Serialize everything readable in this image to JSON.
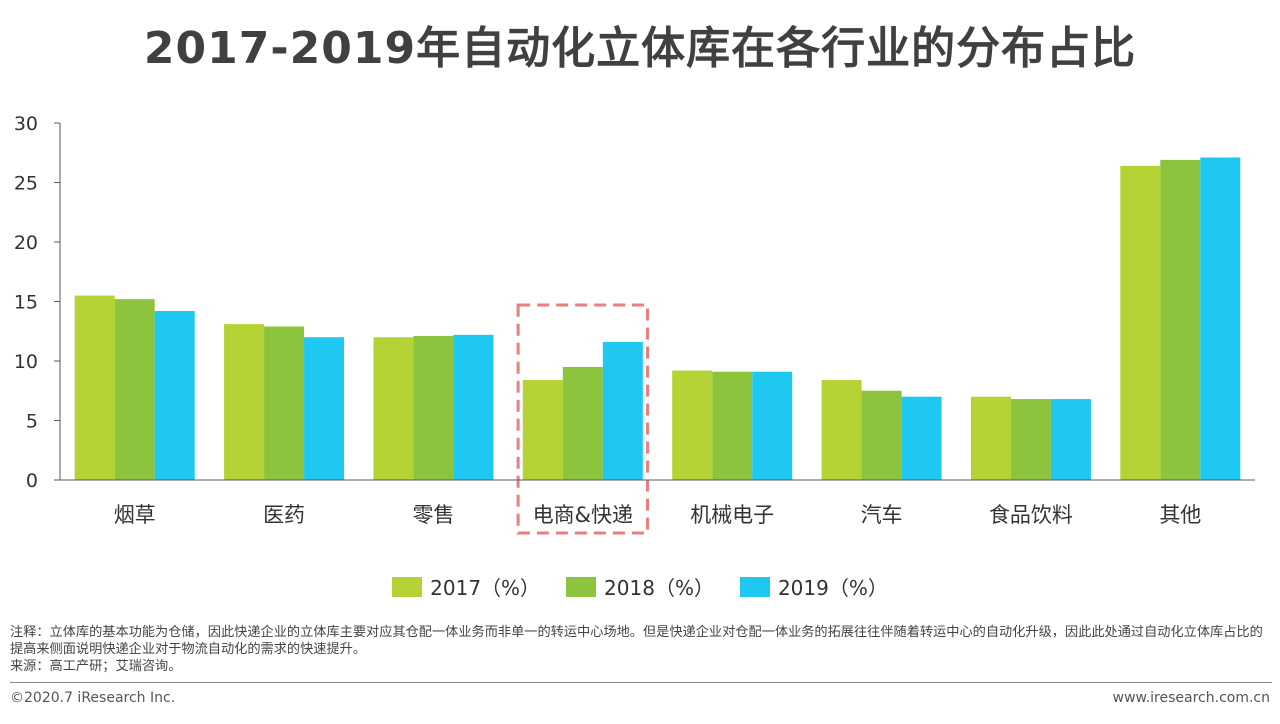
{
  "title": "2017-2019年自动化立体库在各行业的分布占比",
  "colors": {
    "s2017": "#b5d334",
    "s2018": "#8cc43e",
    "s2019": "#1ec8f0",
    "highlight": "#e97f7f",
    "axis": "#595959"
  },
  "chart_data": {
    "type": "bar",
    "categories": [
      "烟草",
      "医药",
      "零售",
      "电商&快递",
      "机械电子",
      "汽车",
      "食品饮料",
      "其他"
    ],
    "series": [
      {
        "name": "2017（%）",
        "values": [
          15.5,
          13.1,
          12.0,
          8.4,
          9.2,
          8.4,
          7.0,
          26.4
        ]
      },
      {
        "name": "2018（%）",
        "values": [
          15.2,
          12.9,
          12.1,
          9.5,
          9.1,
          7.5,
          6.8,
          26.9
        ]
      },
      {
        "name": "2019（%）",
        "values": [
          14.2,
          12.0,
          12.2,
          11.6,
          9.1,
          7.0,
          6.8,
          27.1
        ]
      }
    ],
    "yticks": [
      "0",
      "5",
      "10",
      "15",
      "20",
      "25",
      "30"
    ],
    "ylim": [
      0,
      30
    ],
    "highlight_category": "电商&快递",
    "legend": [
      "2017（%）",
      "2018（%）",
      "2019（%）"
    ]
  },
  "note": "注释：立体库的基本功能为仓储，因此快递企业的立体库主要对应其仓配一体业务而非单一的转运中心场地。但是快递企业对仓配一体业务的拓展往往伴随着转运中心的自动化升级，因此此处通过自动化立体库占比的提高来侧面说明快递企业对于物流自动化的需求的快速提升。",
  "source": "来源：高工产研；艾瑞咨询。",
  "footer": {
    "copyright": "©2020.7 iResearch Inc.",
    "website": "www.iresearch.com.cn"
  }
}
